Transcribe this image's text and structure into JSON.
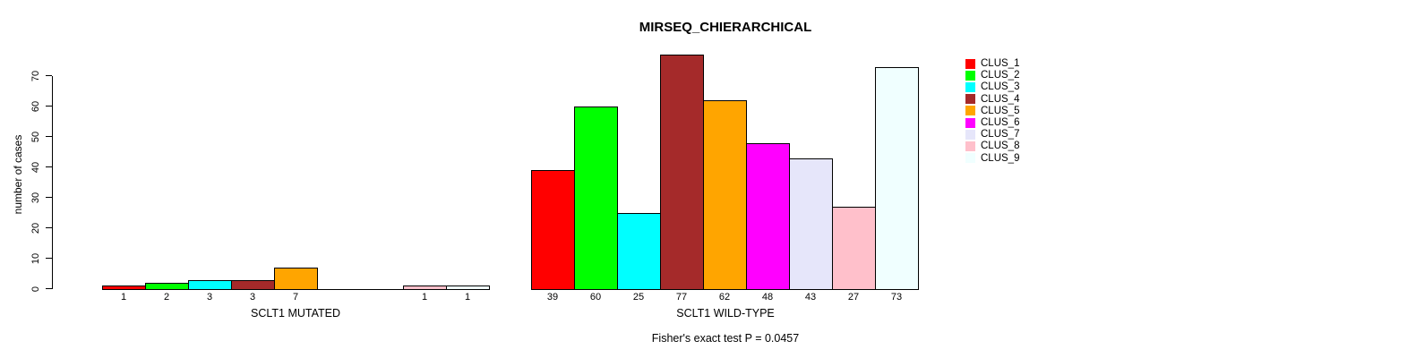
{
  "chart_data": {
    "type": "bar",
    "title": "MIRSEQ_CHIERARCHICAL",
    "ylabel": "number of cases",
    "xlabel": "",
    "ylim": [
      0,
      70
    ],
    "yticks": [
      0,
      10,
      20,
      30,
      40,
      50,
      60,
      70
    ],
    "grid": false,
    "legend_position": "top-right",
    "categories": [
      "CLUS_1",
      "CLUS_2",
      "CLUS_3",
      "CLUS_4",
      "CLUS_5",
      "CLUS_6",
      "CLUS_7",
      "CLUS_8",
      "CLUS_9"
    ],
    "colors": [
      "#FF0000",
      "#00FF00",
      "#00FFFF",
      "#A52A2A",
      "#FFA500",
      "#FF00FF",
      "#E6E6FA",
      "#FFC0CB",
      "#F0FFFF"
    ],
    "groups": [
      {
        "label": "SCLT1 MUTATED",
        "values": [
          1,
          2,
          3,
          3,
          7,
          0,
          0,
          1,
          1
        ]
      },
      {
        "label": "SCLT1 WILD-TYPE",
        "values": [
          39,
          60,
          25,
          77,
          62,
          48,
          43,
          27,
          73
        ]
      }
    ],
    "annotation": "Fisher's exact test P = 0.0457",
    "axis_color": "#000000",
    "bar_border_color": "#000000"
  }
}
